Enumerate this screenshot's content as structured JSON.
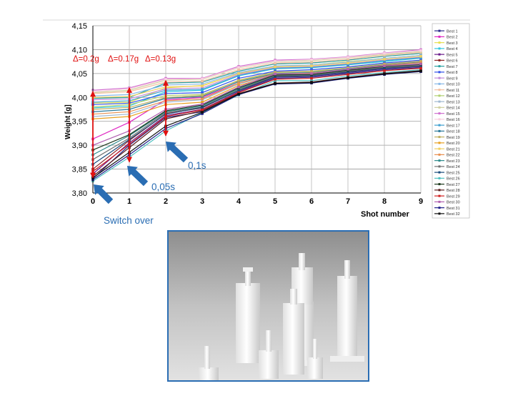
{
  "chart_data": {
    "type": "line",
    "title": "",
    "xlabel": "Shot number",
    "ylabel": "Weight [g]",
    "x": [
      0,
      1,
      2,
      3,
      4,
      5,
      6,
      7,
      8,
      9
    ],
    "ylim": [
      3.8,
      4.15
    ],
    "yticks": [
      "3,80",
      "3,85",
      "3,90",
      "3,95",
      "4,00",
      "4,05",
      "4,10",
      "4,15"
    ],
    "xticks": [
      "0",
      "1",
      "2",
      "3",
      "4",
      "5",
      "6",
      "7",
      "8",
      "9"
    ],
    "grid": true,
    "legend_position": "right",
    "annotations": {
      "deltas": [
        "Δ=0.2g",
        "Δ=0.17g",
        "Δ=0.13g"
      ],
      "arrow_labels": [
        "Switch over",
        "0,05s",
        "0,1s"
      ]
    },
    "series": [
      {
        "name": "Best 1",
        "color": "#2b2b8c",
        "values": [
          3.83,
          3.9,
          3.958,
          3.97,
          4.01,
          4.04,
          4.042,
          4.05,
          4.058,
          4.062
        ]
      },
      {
        "name": "Best 2",
        "color": "#e02bc3",
        "values": [
          3.913,
          3.948,
          3.995,
          4.0,
          4.03,
          4.045,
          4.048,
          4.058,
          4.065,
          4.072
        ]
      },
      {
        "name": "Best 3",
        "color": "#e8e050",
        "values": [
          3.988,
          3.99,
          4.02,
          4.025,
          4.05,
          4.065,
          4.068,
          4.075,
          4.082,
          4.088
        ]
      },
      {
        "name": "Best 4",
        "color": "#33c7e0",
        "values": [
          3.978,
          3.982,
          4.012,
          4.015,
          4.045,
          4.06,
          4.062,
          4.068,
          4.075,
          4.082
        ]
      },
      {
        "name": "Best 5",
        "color": "#6a1b8a",
        "values": [
          3.84,
          3.905,
          3.962,
          3.975,
          4.012,
          4.042,
          4.044,
          4.052,
          4.06,
          4.064
        ]
      },
      {
        "name": "Best 6",
        "color": "#8b2020",
        "values": [
          3.85,
          3.91,
          3.966,
          3.978,
          4.015,
          4.044,
          4.046,
          4.054,
          4.062,
          4.066
        ]
      },
      {
        "name": "Best 7",
        "color": "#2aa0a0",
        "values": [
          3.998,
          4.0,
          4.03,
          4.032,
          4.055,
          4.07,
          4.072,
          4.078,
          4.086,
          4.092
        ]
      },
      {
        "name": "Best 8",
        "color": "#3050e8",
        "values": [
          3.985,
          3.988,
          4.008,
          4.01,
          4.04,
          4.055,
          4.058,
          4.064,
          4.072,
          4.078
        ]
      },
      {
        "name": "Best 9",
        "color": "#c08bd8",
        "values": [
          3.995,
          3.997,
          4.018,
          4.02,
          4.048,
          4.062,
          4.064,
          4.07,
          4.078,
          4.084
        ]
      },
      {
        "name": "Best 10",
        "color": "#88b8e8",
        "values": [
          4.003,
          4.006,
          4.026,
          4.028,
          4.052,
          4.066,
          4.068,
          4.074,
          4.082,
          4.088
        ]
      },
      {
        "name": "Best 11",
        "color": "#f4c0a0",
        "values": [
          4.008,
          4.012,
          4.032,
          4.034,
          4.058,
          4.072,
          4.074,
          4.08,
          4.088,
          4.094
        ]
      },
      {
        "name": "Best 12",
        "color": "#b0d070",
        "values": [
          3.98,
          3.985,
          4.004,
          4.006,
          4.035,
          4.052,
          4.054,
          4.06,
          4.068,
          4.074
        ]
      },
      {
        "name": "Best 13",
        "color": "#a0b8d0",
        "values": [
          3.96,
          3.965,
          3.99,
          3.995,
          4.028,
          4.048,
          4.05,
          4.058,
          4.066,
          4.072
        ]
      },
      {
        "name": "Best 14",
        "color": "#d0d0a0",
        "values": [
          4.01,
          4.015,
          4.036,
          4.038,
          4.062,
          4.075,
          4.077,
          4.083,
          4.09,
          4.096
        ]
      },
      {
        "name": "Best 15",
        "color": "#d070d0",
        "values": [
          4.015,
          4.02,
          4.04,
          4.04,
          4.065,
          4.078,
          4.08,
          4.085,
          4.093,
          4.1
        ]
      },
      {
        "name": "Best 16",
        "color": "#f8d0e0",
        "values": [
          4.012,
          4.018,
          4.038,
          4.039,
          4.063,
          4.076,
          4.079,
          4.084,
          4.092,
          4.098
        ]
      },
      {
        "name": "Best 17",
        "color": "#40a0d0",
        "values": [
          3.99,
          3.993,
          4.015,
          4.017,
          4.046,
          4.061,
          4.063,
          4.069,
          4.077,
          4.083
        ]
      },
      {
        "name": "Best 18",
        "color": "#2c7a9a",
        "values": [
          3.97,
          3.975,
          3.998,
          4.002,
          4.033,
          4.05,
          4.052,
          4.06,
          4.068,
          4.074
        ]
      },
      {
        "name": "Best 19",
        "color": "#c0b060",
        "values": [
          3.975,
          3.979,
          4.0,
          4.004,
          4.036,
          4.053,
          4.055,
          4.062,
          4.07,
          4.076
        ]
      },
      {
        "name": "Best 20",
        "color": "#e8a020",
        "values": [
          3.955,
          3.96,
          3.985,
          3.99,
          4.025,
          4.046,
          4.048,
          4.056,
          4.064,
          4.07
        ]
      },
      {
        "name": "Best 21",
        "color": "#f0d060",
        "values": [
          4.0,
          4.002,
          4.022,
          4.024,
          4.05,
          4.064,
          4.066,
          4.072,
          4.08,
          4.086
        ]
      },
      {
        "name": "Best 22",
        "color": "#e89050",
        "values": [
          3.965,
          3.97,
          3.993,
          3.997,
          4.03,
          4.049,
          4.051,
          4.059,
          4.067,
          4.073
        ]
      },
      {
        "name": "Best 23",
        "color": "#2e8b8b",
        "values": [
          3.88,
          3.92,
          3.97,
          3.982,
          4.018,
          4.046,
          4.047,
          4.056,
          4.064,
          4.068
        ]
      },
      {
        "name": "Best 24",
        "color": "#707070",
        "values": [
          3.87,
          3.915,
          3.968,
          3.98,
          4.016,
          4.045,
          4.046,
          4.055,
          4.063,
          4.067
        ]
      },
      {
        "name": "Best 25",
        "color": "#1a4c7c",
        "values": [
          3.86,
          3.912,
          3.965,
          3.979,
          4.014,
          4.043,
          4.045,
          4.053,
          4.061,
          4.065
        ]
      },
      {
        "name": "Best 26",
        "color": "#50c0c0",
        "values": [
          3.825,
          3.875,
          3.93,
          3.968,
          4.005,
          4.035,
          4.035,
          4.045,
          4.052,
          4.058
        ]
      },
      {
        "name": "Best 27",
        "color": "#1e3a1e",
        "values": [
          3.89,
          3.922,
          3.972,
          3.984,
          4.02,
          4.047,
          4.048,
          4.057,
          4.065,
          4.069
        ]
      },
      {
        "name": "Best 28",
        "color": "#5a1e1e",
        "values": [
          3.835,
          3.895,
          3.955,
          3.972,
          4.008,
          4.03,
          4.032,
          4.042,
          4.05,
          4.056
        ]
      },
      {
        "name": "Best 29",
        "color": "#d02020",
        "values": [
          3.845,
          3.902,
          3.96,
          3.974,
          4.01,
          4.038,
          4.04,
          4.048,
          4.056,
          4.061
        ]
      },
      {
        "name": "Best 30",
        "color": "#b060b0",
        "values": [
          3.9,
          3.93,
          3.975,
          3.986,
          4.022,
          4.049,
          4.05,
          4.059,
          4.066,
          4.07
        ]
      },
      {
        "name": "Best 31",
        "color": "#20208a",
        "values": [
          3.828,
          3.88,
          3.935,
          3.966,
          4.006,
          4.028,
          4.03,
          4.04,
          4.048,
          4.054
        ]
      },
      {
        "name": "Best 32",
        "color": "#101010",
        "values": [
          3.832,
          3.885,
          3.94,
          3.969,
          4.007,
          4.029,
          4.031,
          4.041,
          4.049,
          4.055
        ]
      }
    ]
  }
}
